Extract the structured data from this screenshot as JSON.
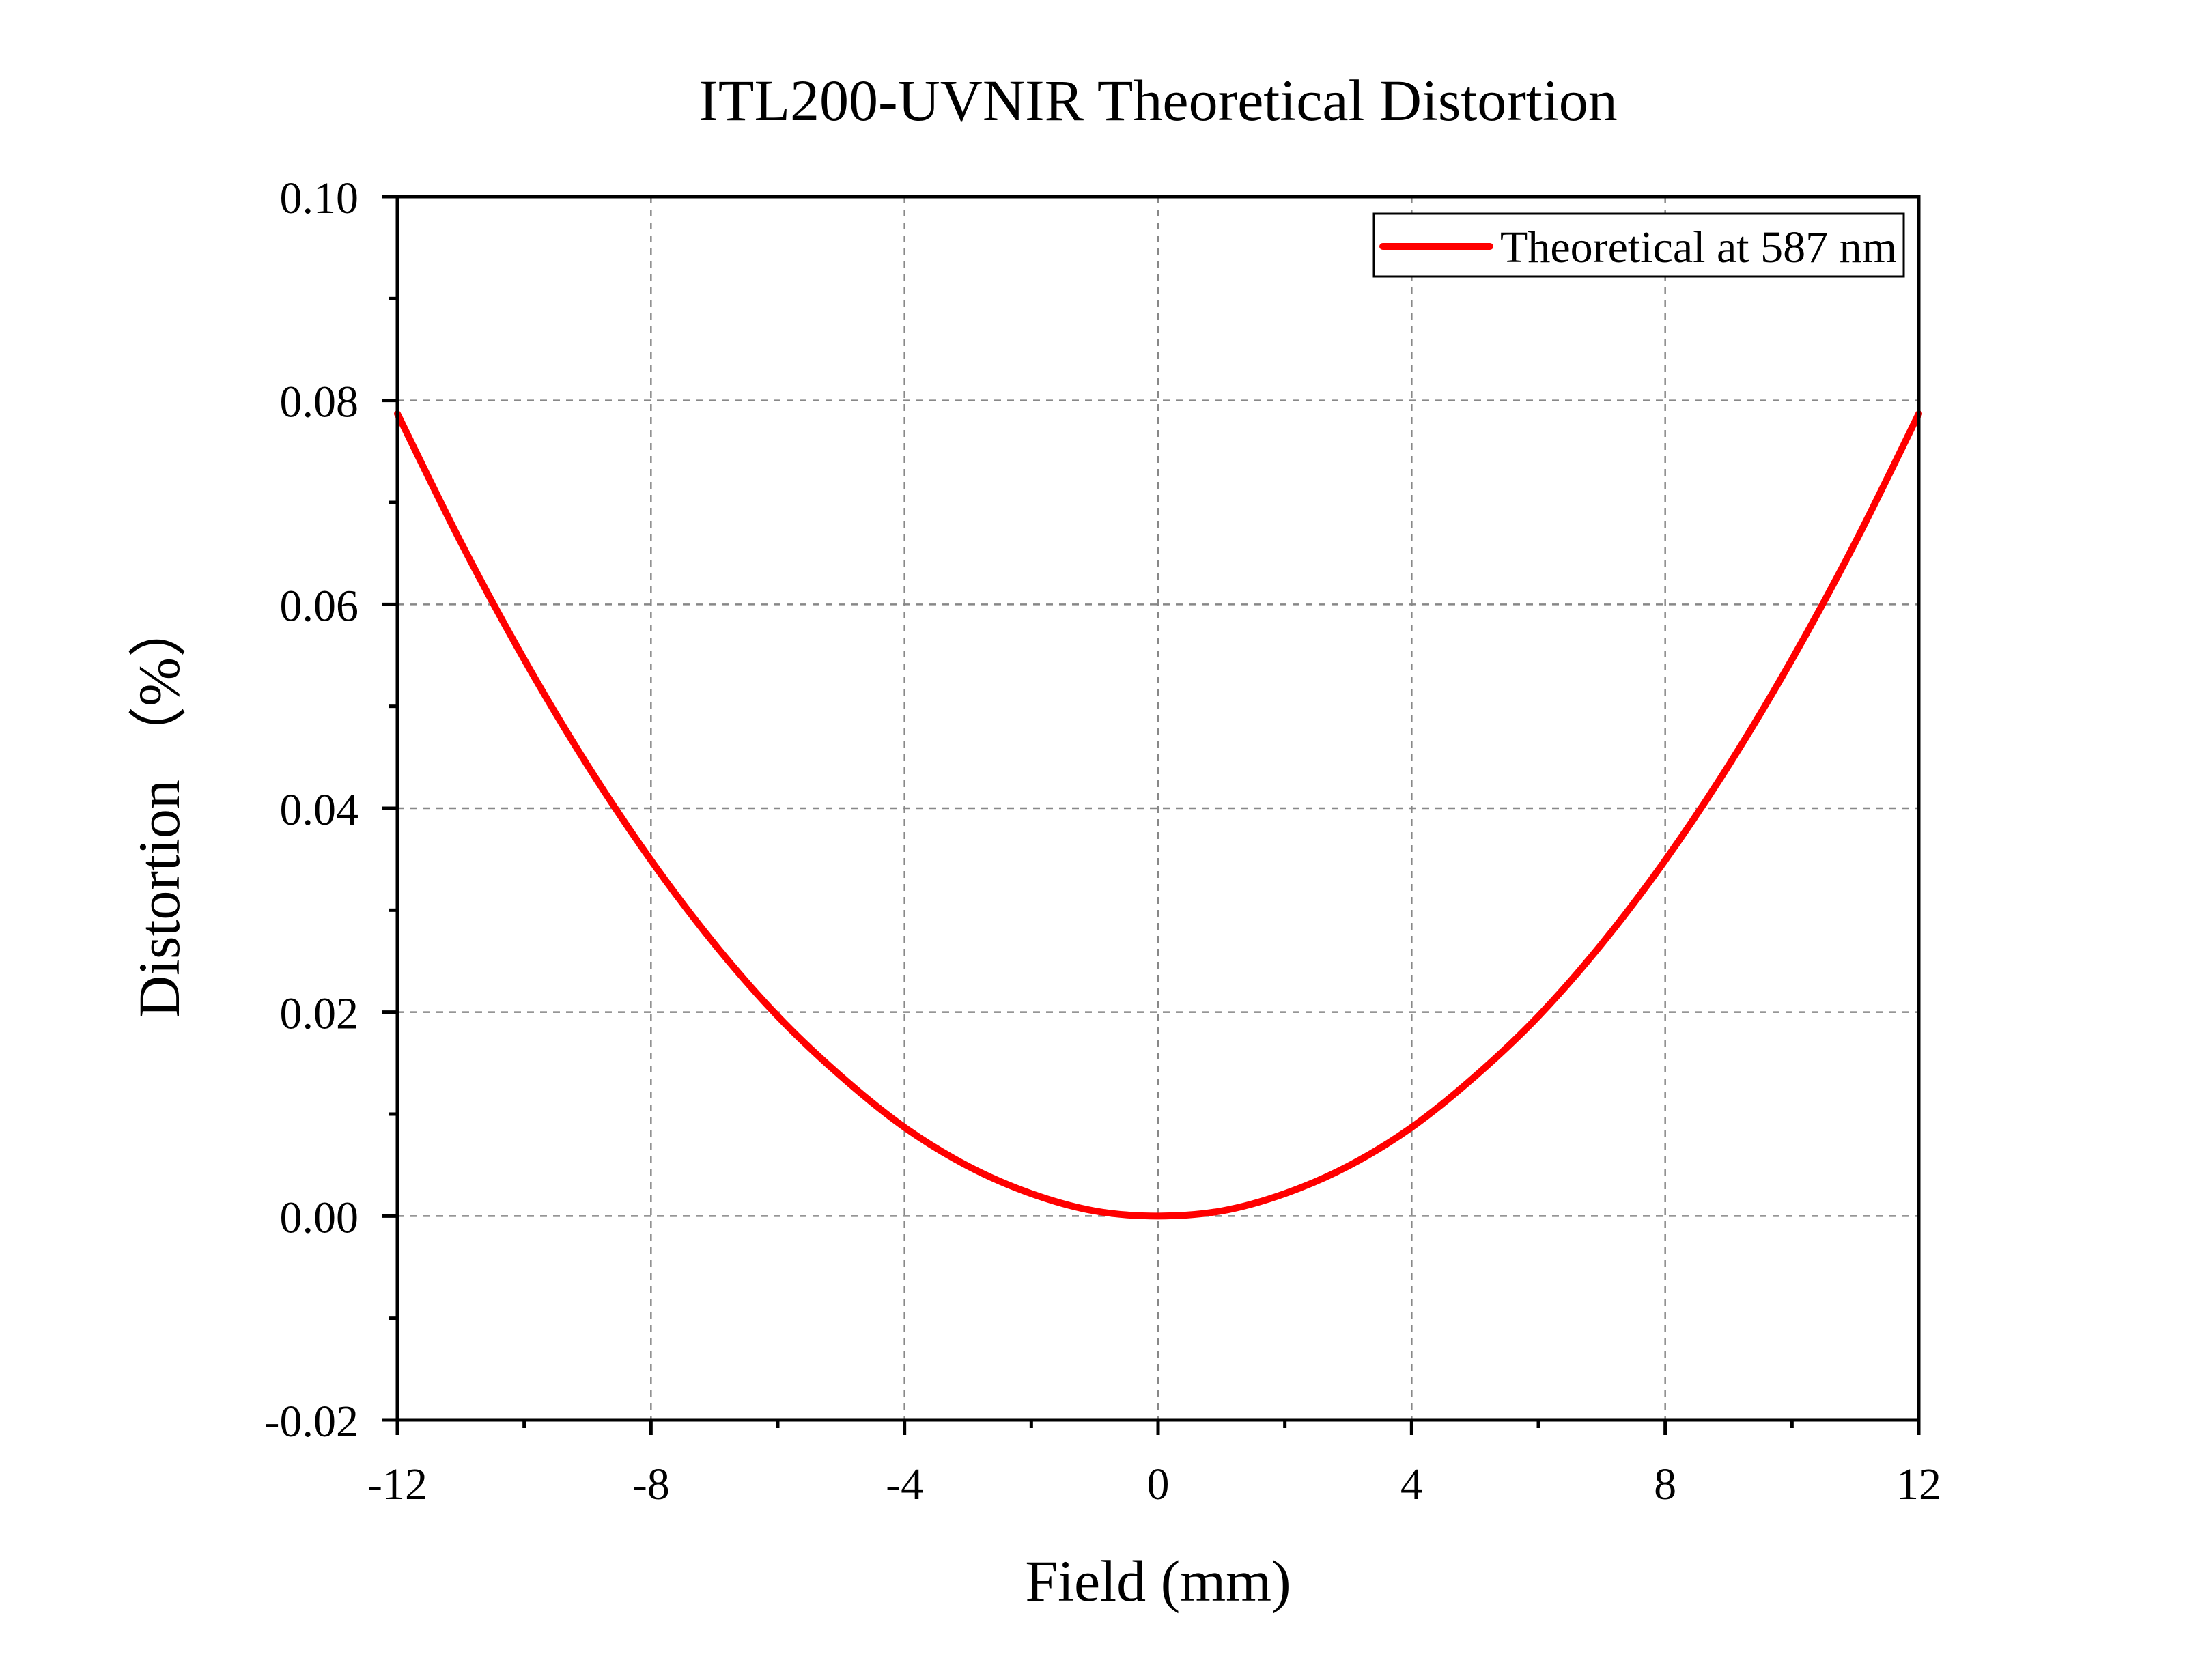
{
  "chart_data": {
    "type": "line",
    "title": "ITL200-UVNIR Theoretical Distortion",
    "xlabel": "Field (mm)",
    "ylabel": "Distortion （%）",
    "xlim": [
      -12,
      12
    ],
    "ylim": [
      -0.02,
      0.1
    ],
    "xticks": [
      -12,
      -8,
      -4,
      0,
      4,
      8,
      12
    ],
    "xtick_labels": [
      "-12",
      "-8",
      "-4",
      "0",
      "4",
      "8",
      "12"
    ],
    "yticks": [
      -0.02,
      0,
      0.02,
      0.04,
      0.06,
      0.08,
      0.1
    ],
    "ytick_labels": [
      "-0.02",
      "0.00",
      "0.02",
      "0.04",
      "0.06",
      "0.08",
      "0.10"
    ],
    "grid": true,
    "legend_position": "top-right",
    "series": [
      {
        "name": "Theoretical at 587 nm",
        "color": "#ff0000",
        "x": [
          -12,
          -11,
          -10,
          -9,
          -8,
          -7,
          -6,
          -5,
          -4,
          -3,
          -2,
          -1,
          0,
          1,
          2,
          3,
          4,
          5,
          6,
          7,
          8,
          9,
          10,
          11,
          12
        ],
        "y": [
          0.0787,
          0.0661,
          0.0546,
          0.0442,
          0.0349,
          0.0267,
          0.0196,
          0.0137,
          0.0087,
          0.0049,
          0.0022,
          0.0005,
          0.0,
          0.0005,
          0.0022,
          0.0049,
          0.0087,
          0.0137,
          0.0196,
          0.0267,
          0.0349,
          0.0442,
          0.0546,
          0.0661,
          0.0787
        ]
      }
    ]
  }
}
